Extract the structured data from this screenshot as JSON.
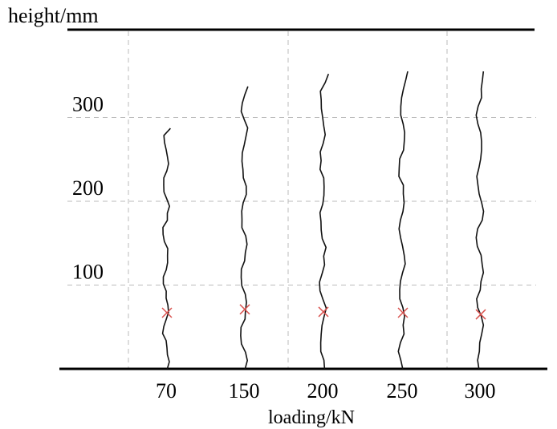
{
  "chart_data": {
    "type": "line",
    "ylabel": "height/mm",
    "xlabel": "loading/kN",
    "categories": [
      "70",
      "150",
      "200",
      "250",
      "300"
    ],
    "yticks": [
      100,
      200,
      300
    ],
    "ylim": [
      0,
      400
    ],
    "grid": true,
    "series": [
      {
        "load": "70",
        "crack_height": 287,
        "marker_height": 67
      },
      {
        "load": "150",
        "crack_height": 337,
        "marker_height": 71
      },
      {
        "load": "200",
        "crack_height": 352,
        "marker_height": 68
      },
      {
        "load": "250",
        "crack_height": 355,
        "marker_height": 67
      },
      {
        "load": "300",
        "crack_height": 355,
        "marker_height": 65
      }
    ]
  },
  "colors": {
    "crack": "#111111",
    "marker": "#d9534f",
    "grid": "#bbbbbb",
    "axis": "#000000"
  }
}
